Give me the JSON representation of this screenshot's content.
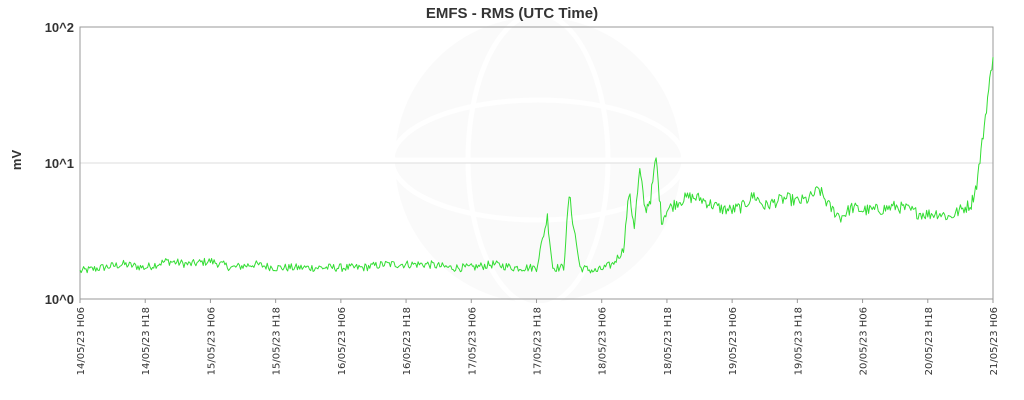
{
  "chart_data": {
    "type": "line",
    "title": "EMFS - RMS (UTC Time)",
    "xlabel": "",
    "ylabel": "mV",
    "yscale": "log",
    "ylim": [
      1,
      100
    ],
    "yticks": [
      "10^0",
      "10^1",
      "10^2"
    ],
    "grid": "horizontal",
    "legend": "none",
    "line_color": "#33dd33",
    "xticks": [
      "14/05/23 H06",
      "14/05/23 H18",
      "15/05/23 H06",
      "15/05/23 H18",
      "16/05/23 H06",
      "16/05/23 H18",
      "17/05/23 H06",
      "17/05/23 H18",
      "18/05/23 H06",
      "18/05/23 H18",
      "19/05/23 H06",
      "19/05/23 H18",
      "20/05/23 H06",
      "20/05/23 H18",
      "21/05/23 H06"
    ],
    "series": [
      {
        "x": [
          "14/05/23 H06",
          "14/05/23 H10",
          "14/05/23 H14",
          "14/05/23 H18",
          "14/05/23 H22",
          "15/05/23 H02",
          "15/05/23 H06",
          "15/05/23 H10",
          "15/05/23 H14",
          "15/05/23 H18",
          "15/05/23 H22",
          "16/05/23 H02",
          "16/05/23 H06",
          "16/05/23 H10",
          "16/05/23 H14",
          "16/05/23 H18",
          "16/05/23 H22",
          "17/05/23 H02",
          "17/05/23 H06",
          "17/05/23 H10",
          "17/05/23 H14",
          "17/05/23 H18",
          "17/05/23 H20",
          "17/05/23 H21",
          "17/05/23 H23",
          "18/05/23 H00",
          "18/05/23 H02",
          "18/05/23 H05",
          "18/05/23 H08",
          "18/05/23 H10",
          "18/05/23 H11",
          "18/05/23 H12",
          "18/05/23 H13",
          "18/05/23 H14",
          "18/05/23 H15",
          "18/05/23 H16",
          "18/05/23 H17",
          "18/05/23 H18",
          "18/05/23 H20",
          "18/05/23 H22",
          "19/05/23 H00",
          "19/05/23 H02",
          "19/05/23 H04",
          "19/05/23 H06",
          "19/05/23 H08",
          "19/05/23 H10",
          "19/05/23 H12",
          "19/05/23 H14",
          "19/05/23 H16",
          "19/05/23 H18",
          "19/05/23 H20",
          "19/05/23 H22",
          "20/05/23 H00",
          "20/05/23 H02",
          "20/05/23 H04",
          "20/05/23 H06",
          "20/05/23 H08",
          "20/05/23 H10",
          "20/05/23 H12",
          "20/05/23 H14",
          "20/05/23 H16",
          "20/05/23 H18",
          "20/05/23 H20",
          "20/05/23 H22",
          "21/05/23 H00",
          "21/05/23 H02",
          "21/05/23 H03",
          "21/05/23 H04",
          "21/05/23 H05",
          "21/05/23 H06"
        ],
        "values": [
          1.6,
          1.7,
          1.8,
          1.7,
          1.9,
          1.8,
          1.9,
          1.7,
          1.8,
          1.7,
          1.7,
          1.7,
          1.7,
          1.7,
          1.8,
          1.8,
          1.8,
          1.7,
          1.7,
          1.8,
          1.7,
          1.7,
          4.0,
          1.7,
          1.7,
          5.8,
          1.7,
          1.6,
          1.8,
          2.3,
          6.0,
          3.5,
          8.8,
          4.5,
          5.5,
          11.0,
          3.8,
          4.5,
          5.2,
          5.6,
          5.5,
          5.0,
          4.6,
          4.5,
          4.8,
          5.8,
          4.8,
          5.2,
          5.5,
          5.2,
          5.4,
          6.4,
          4.7,
          4.0,
          4.7,
          4.5,
          4.5,
          4.6,
          4.8,
          4.6,
          4.3,
          4.2,
          4.3,
          4.0,
          4.5,
          5.0,
          7.0,
          14.0,
          30.0,
          60.0
        ]
      }
    ]
  }
}
